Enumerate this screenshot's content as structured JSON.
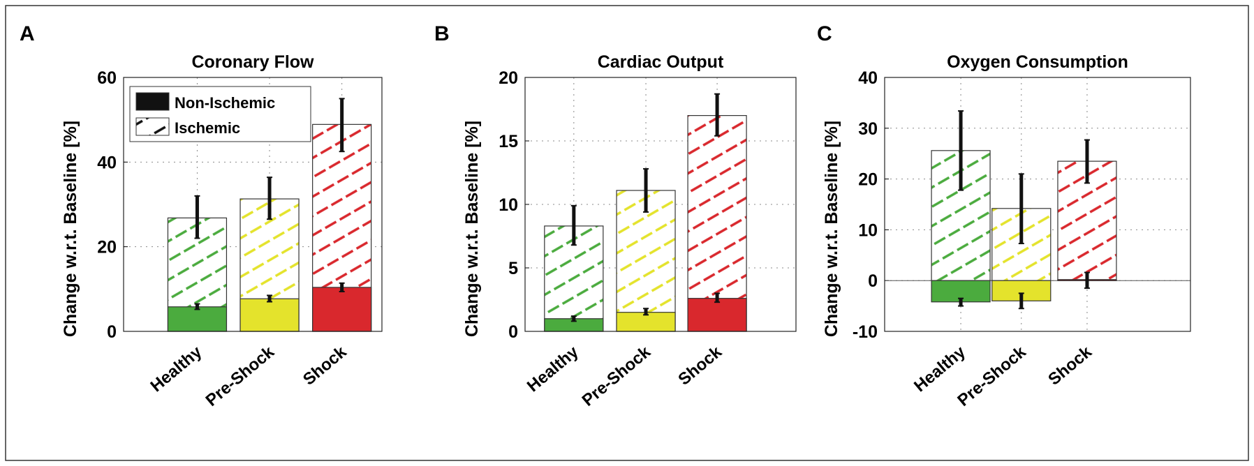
{
  "colors": {
    "Healthy": "#4bab3e",
    "Pre-Shock": "#e4e32c",
    "Shock": "#d9282d"
  },
  "legend": {
    "items": [
      "Non-Ischemic",
      "Ischemic"
    ],
    "placement": "top-left"
  },
  "chart_data": [
    {
      "panel": "A",
      "type": "bar",
      "stacked": "overlay",
      "title": "Coronary Flow",
      "xlabel": "",
      "ylabel": "Change w.r.t. Baseline [%]",
      "ylim": [
        0,
        60
      ],
      "yticks": [
        0,
        20,
        40,
        60
      ],
      "grid": true,
      "categories": [
        "Healthy",
        "Pre-Shock",
        "Shock"
      ],
      "series": [
        {
          "name": "Ischemic",
          "values": [
            26.8,
            31.3,
            48.9
          ],
          "err_low": [
            22,
            26.5,
            42.5
          ],
          "err_high": [
            32,
            36.4,
            55
          ]
        },
        {
          "name": "Non-Ischemic",
          "values": [
            5.8,
            7.7,
            10.4
          ],
          "err_low": [
            5.2,
            7,
            9.4
          ],
          "err_high": [
            6.5,
            8.5,
            11.4
          ]
        }
      ]
    },
    {
      "panel": "B",
      "type": "bar",
      "stacked": "overlay",
      "title": "Cardiac Output",
      "xlabel": "",
      "ylabel": "Change w.r.t. Baseline [%]",
      "ylim": [
        0,
        20
      ],
      "yticks": [
        0,
        5,
        10,
        15,
        20
      ],
      "grid": true,
      "categories": [
        "Healthy",
        "Pre-Shock",
        "Shock"
      ],
      "series": [
        {
          "name": "Ischemic",
          "values": [
            8.3,
            11.1,
            17.0
          ],
          "err_low": [
            6.8,
            9.4,
            15.4
          ],
          "err_high": [
            9.9,
            12.8,
            18.7
          ]
        },
        {
          "name": "Non-Ischemic",
          "values": [
            1.0,
            1.5,
            2.6
          ],
          "err_low": [
            0.8,
            1.3,
            2.3
          ],
          "err_high": [
            1.2,
            1.8,
            3.0
          ]
        }
      ]
    },
    {
      "panel": "C",
      "type": "bar",
      "stacked": "overlay",
      "title": "Oxygen Consumption",
      "xlabel": "",
      "ylabel": "Change w.r.t. Baseline [%]",
      "ylim": [
        -10,
        40
      ],
      "yticks": [
        -10,
        0,
        10,
        20,
        30,
        40
      ],
      "grid": true,
      "categories": [
        "Healthy",
        "Pre-Shock",
        "Shock"
      ],
      "series": [
        {
          "name": "Ischemic",
          "values": [
            25.6,
            14.2,
            23.5
          ],
          "err_low": [
            17.8,
            7.3,
            19.2
          ],
          "err_high": [
            33.4,
            21,
            27.7
          ]
        },
        {
          "name": "Non-Ischemic",
          "values": [
            -4.2,
            -4.0,
            0.2
          ],
          "err_low": [
            -5,
            -5.5,
            -1.5
          ],
          "err_high": [
            -3.5,
            -2.5,
            1.6
          ]
        }
      ]
    }
  ]
}
